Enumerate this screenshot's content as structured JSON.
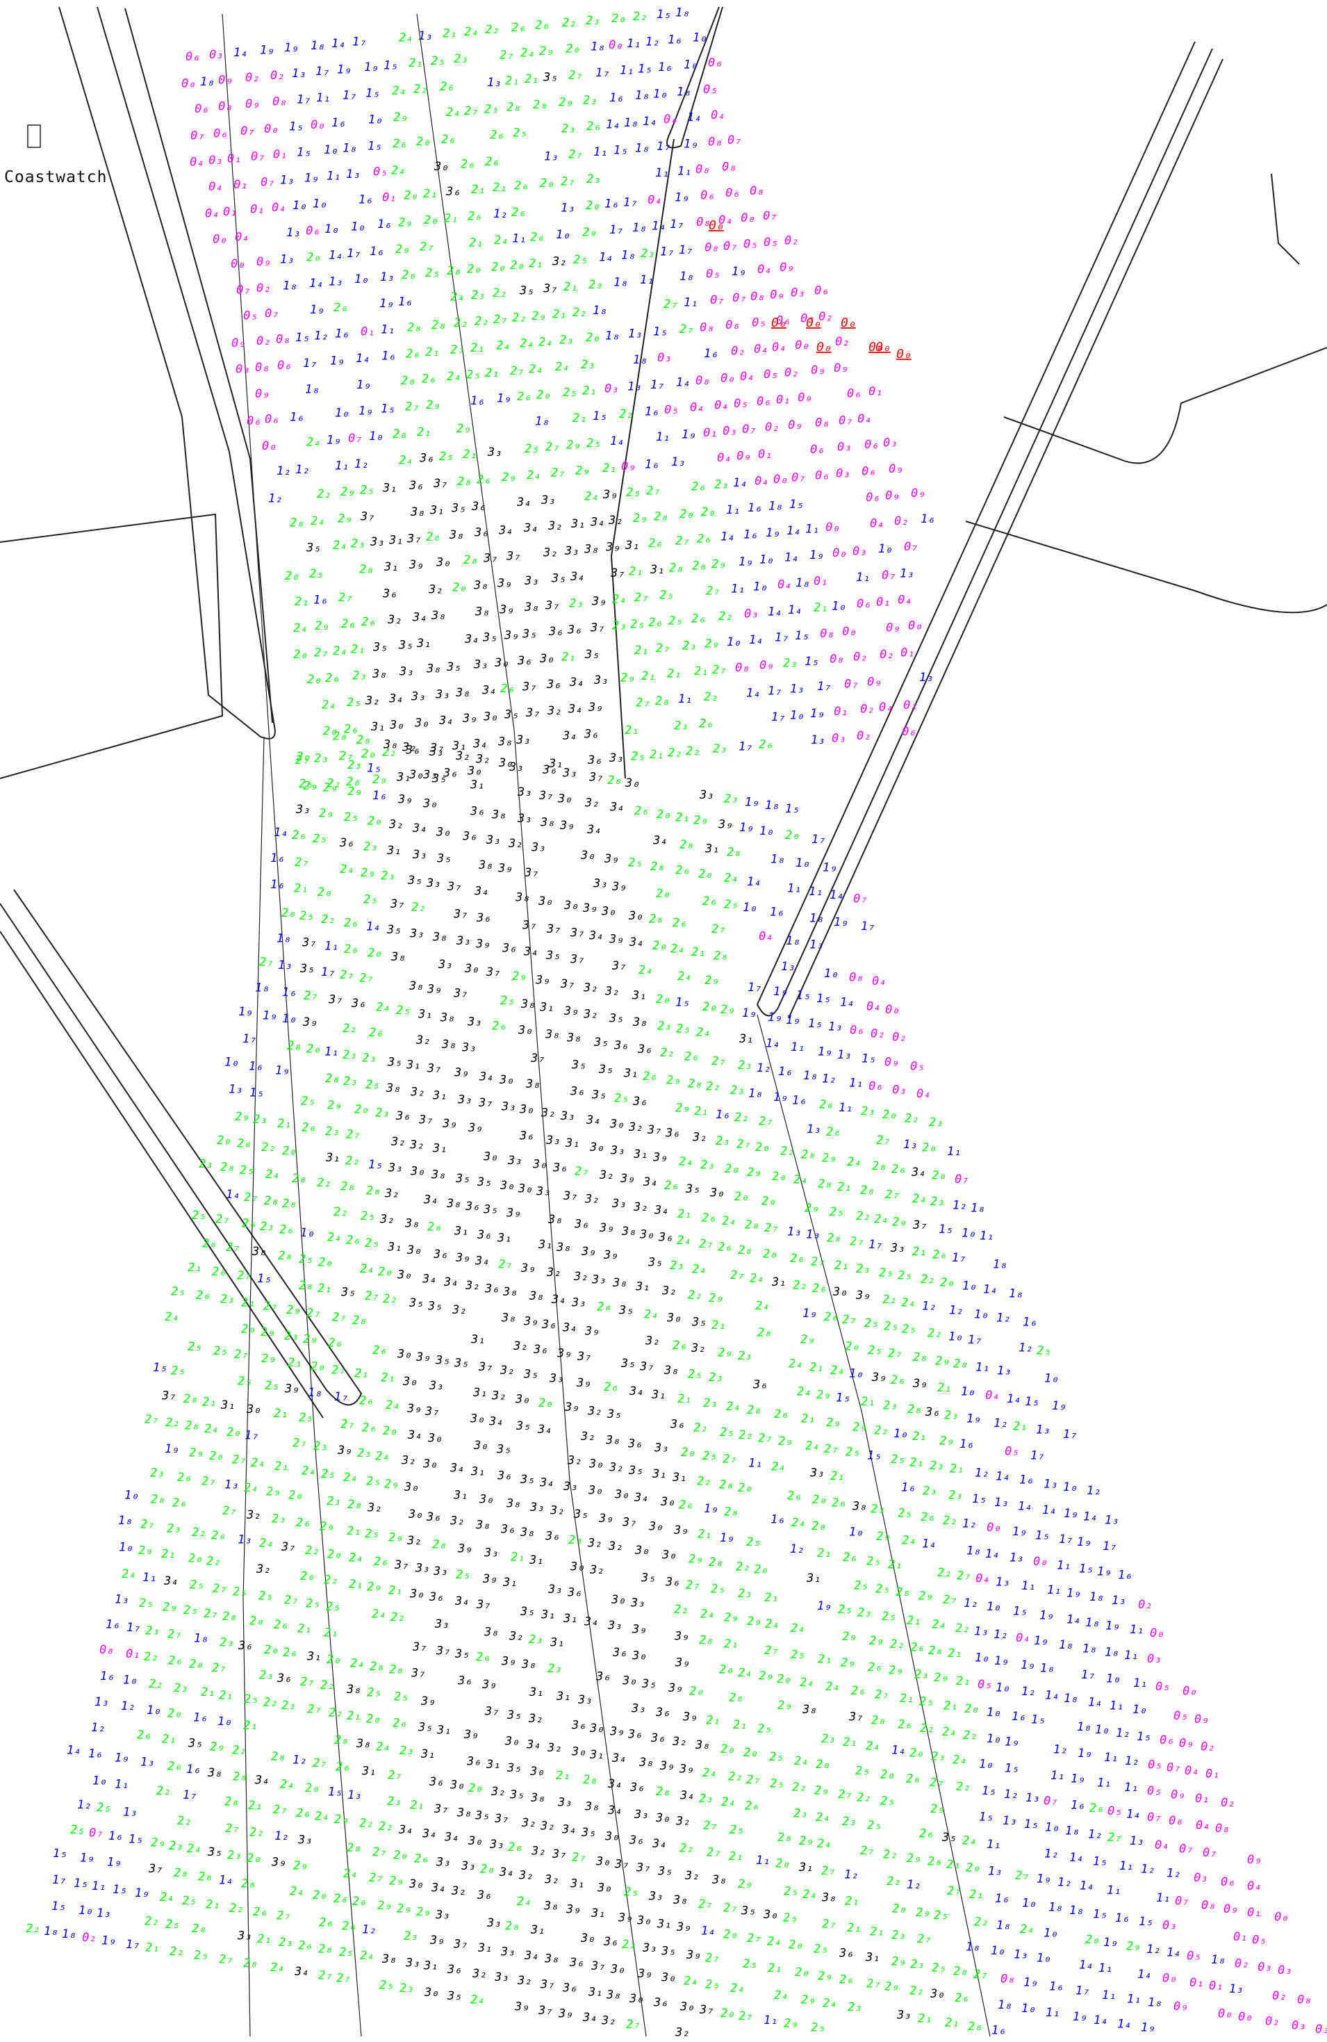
{
  "map": {
    "title": "",
    "place_label": "Coastwatch"
  },
  "legend_colors": {
    "drying_height": "#ff0000",
    "depth_0": "#ff00ff",
    "depth_1": "#0000ff",
    "depth_2": "#00ff00",
    "depth_3": "#000000"
  },
  "depth_scale": [
    {
      "metres": 0,
      "color": "#ff00ff"
    },
    {
      "metres": 1,
      "color": "#0000ff"
    },
    {
      "metres": 2,
      "color": "#00ff00"
    },
    {
      "metres": 3,
      "color": "#000000"
    }
  ],
  "soundings_sample": [
    {
      "text": "0₃",
      "color": "#ff00ff"
    },
    {
      "text": "1₆",
      "color": "#0000ff"
    },
    {
      "text": "2₁",
      "color": "#00ff00"
    },
    {
      "text": "3₂",
      "color": "#000000"
    },
    {
      "text": "0₀",
      "color": "#ff0000"
    }
  ]
}
